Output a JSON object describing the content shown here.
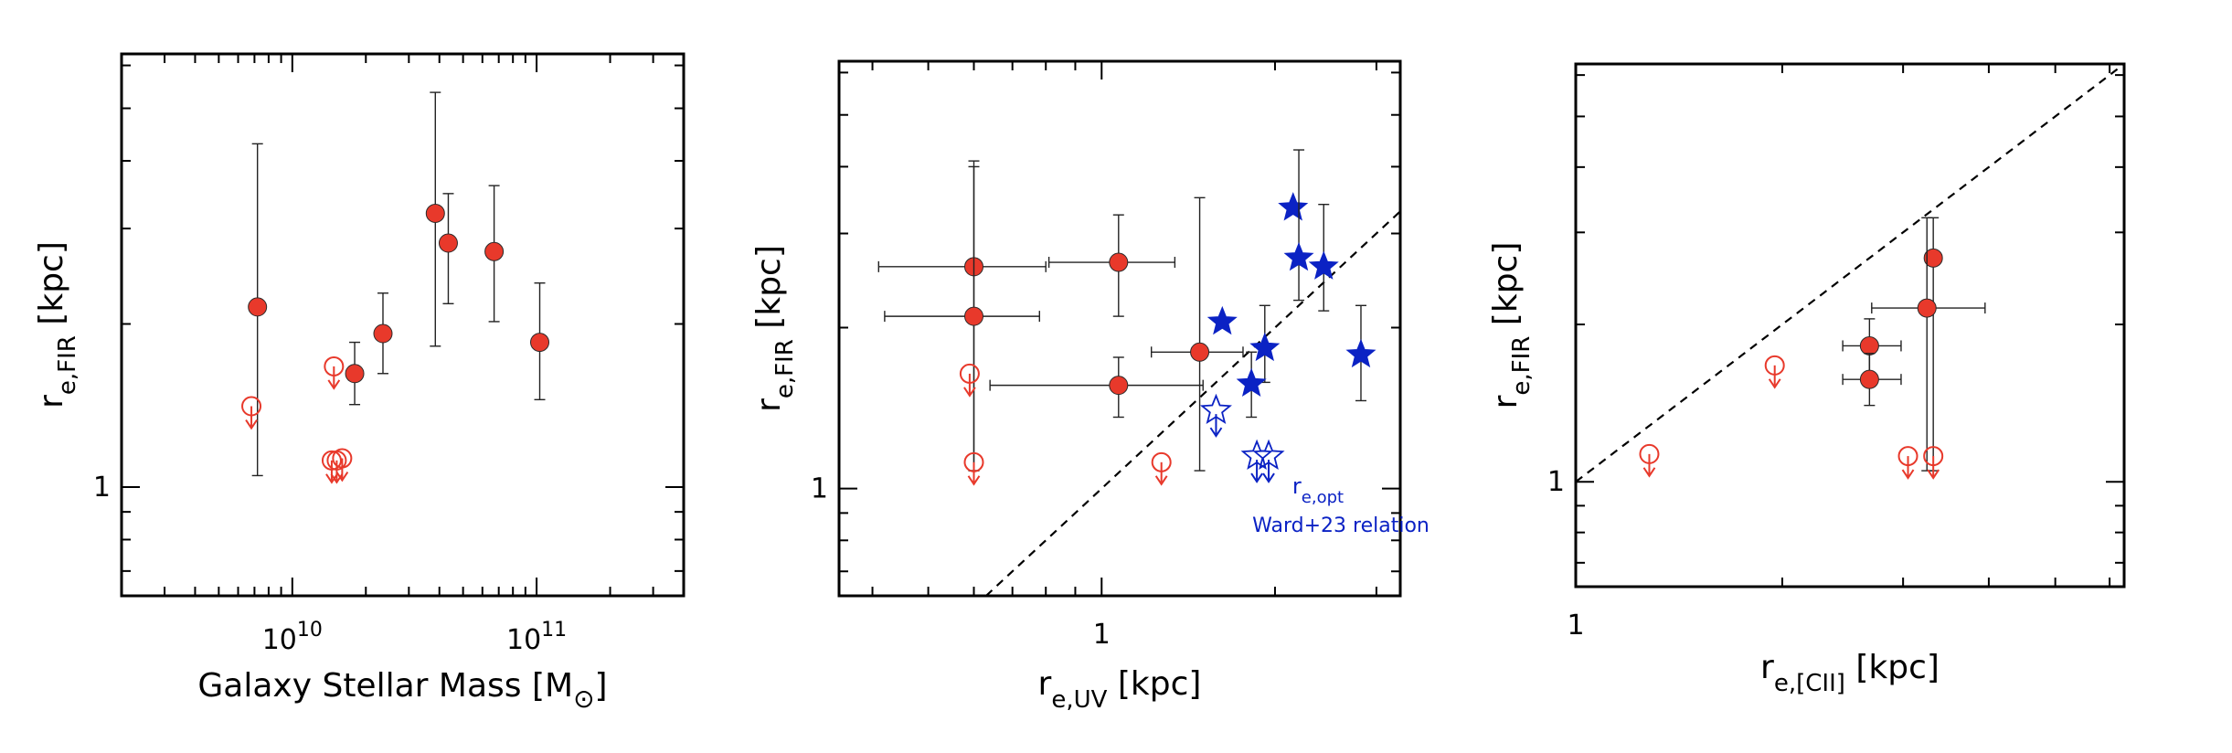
{
  "figure": {
    "description_free": true
  },
  "chart_data": [
    {
      "type": "scatter",
      "panel": "left",
      "xscale": "log",
      "yscale": "log",
      "xlim": [
        2000000000.0,
        400000000000.0
      ],
      "ylim": [
        0.63,
        6.3
      ],
      "xlabel": {
        "main": "Galaxy Stellar Mass [M",
        "sub": "⊙",
        "close": "]"
      },
      "ylabel": {
        "main": "r",
        "sub": "e,FIR",
        "unit": " [kpc]"
      },
      "x_tick_labels": [
        {
          "value": 10000000000.0,
          "base": "10",
          "exp": "10"
        },
        {
          "value": 100000000000.0,
          "base": "10",
          "exp": "11"
        }
      ],
      "y_tick_labels": [
        {
          "value": 1,
          "label": "1"
        }
      ],
      "series": [
        {
          "name": "detections",
          "marker": "filled-circle",
          "color": "#e8392b",
          "points": [
            {
              "x": 7200000000.0,
              "y": 2.15,
              "ylo": 1.05,
              "yhi": 4.3
            },
            {
              "x": 18000000000.0,
              "y": 1.62,
              "ylo": 1.42,
              "yhi": 1.85
            },
            {
              "x": 23500000000.0,
              "y": 1.92,
              "ylo": 1.62,
              "yhi": 2.28
            },
            {
              "x": 38500000000.0,
              "y": 3.2,
              "ylo": 1.82,
              "yhi": 5.35
            },
            {
              "x": 43500000000.0,
              "y": 2.82,
              "ylo": 2.18,
              "yhi": 3.48
            },
            {
              "x": 67000000000.0,
              "y": 2.72,
              "ylo": 2.02,
              "yhi": 3.6
            },
            {
              "x": 103000000000.0,
              "y": 1.85,
              "ylo": 1.45,
              "yhi": 2.38
            }
          ]
        },
        {
          "name": "upper limits",
          "marker": "open-circle-down-arrow",
          "color": "#e8392b",
          "points": [
            {
              "x": 6800000000.0,
              "y": 1.41
            },
            {
              "x": 14800000000.0,
              "y": 1.67
            },
            {
              "x": 14500000000.0,
              "y": 1.12
            },
            {
              "x": 15200000000.0,
              "y": 1.12
            },
            {
              "x": 16000000000.0,
              "y": 1.13
            }
          ]
        }
      ]
    },
    {
      "type": "scatter",
      "panel": "middle",
      "xscale": "log",
      "yscale": "log",
      "xlim": [
        0.35,
        3.3
      ],
      "ylim": [
        0.63,
        6.3
      ],
      "xlabel": {
        "main": "r",
        "sub": "e,UV",
        "unit": " [kpc]"
      },
      "ylabel": {
        "main": "r",
        "sub": "e,FIR",
        "unit": " [kpc]"
      },
      "x_tick_labels": [
        {
          "value": 1,
          "label": "1"
        }
      ],
      "y_tick_labels": [
        {
          "value": 1,
          "label": "1"
        }
      ],
      "one_to_one_line": true,
      "annotation": {
        "line1": "r",
        "line1_sub": "e,opt",
        "line2": "Ward+23 relation"
      },
      "series": [
        {
          "name": "detections",
          "marker": "filled-circle",
          "color": "#e8392b",
          "points": [
            {
              "x": 0.6,
              "y": 2.6,
              "xlo": 0.41,
              "xhi": 0.8,
              "ylo": 1.08,
              "yhi": 4.1
            },
            {
              "x": 0.6,
              "y": 2.1,
              "xlo": 0.42,
              "xhi": 0.78,
              "ylo": 1.08,
              "yhi": 4.0
            },
            {
              "x": 1.07,
              "y": 2.65,
              "xlo": 0.81,
              "xhi": 1.34,
              "ylo": 2.1,
              "yhi": 3.25
            },
            {
              "x": 1.48,
              "y": 1.8,
              "xlo": 1.22,
              "xhi": 1.76,
              "ylo": 1.08,
              "yhi": 3.5
            },
            {
              "x": 1.07,
              "y": 1.56,
              "xlo": 0.64,
              "xhi": 1.5,
              "ylo": 1.36,
              "yhi": 1.76
            }
          ]
        },
        {
          "name": "upper limits",
          "marker": "open-circle-down-arrow",
          "color": "#e8392b",
          "points": [
            {
              "x": 0.59,
              "y": 1.64
            },
            {
              "x": 0.6,
              "y": 1.12
            },
            {
              "x": 1.27,
              "y": 1.12
            }
          ]
        },
        {
          "name": "r_e,opt (Ward+23 relation)",
          "marker": "filled-star",
          "color": "#0b22c4",
          "points": [
            {
              "x": 2.15,
              "y": 3.35,
              "ylo": null,
              "yhi": null
            },
            {
              "x": 2.2,
              "y": 2.7,
              "ylo": 2.25,
              "yhi": 4.3
            },
            {
              "x": 2.43,
              "y": 2.6,
              "ylo": 2.15,
              "yhi": 3.4
            },
            {
              "x": 1.62,
              "y": 2.05,
              "ylo": null,
              "yhi": null
            },
            {
              "x": 1.92,
              "y": 1.83,
              "ylo": 1.58,
              "yhi": 2.2
            },
            {
              "x": 2.82,
              "y": 1.78,
              "ylo": 1.46,
              "yhi": 2.2
            },
            {
              "x": 1.82,
              "y": 1.57,
              "ylo": 1.36,
              "yhi": 1.8
            }
          ]
        },
        {
          "name": "r_e,opt upper limits",
          "marker": "open-star-down-arrow",
          "color": "#0b22c4",
          "points": [
            {
              "x": 1.58,
              "y": 1.4
            },
            {
              "x": 1.86,
              "y": 1.15
            },
            {
              "x": 1.95,
              "y": 1.15
            }
          ]
        }
      ]
    },
    {
      "type": "scatter",
      "panel": "right",
      "xscale": "log",
      "yscale": "log",
      "xlim": [
        1.0,
        6.3
      ],
      "ylim": [
        0.63,
        6.3
      ],
      "xlabel": {
        "main": "r",
        "sub": "e,[CII]",
        "unit": " [kpc]"
      },
      "ylabel": {
        "main": "r",
        "sub": "e,FIR",
        "unit": " [kpc]"
      },
      "x_tick_labels": [
        {
          "value": 1,
          "label": "1"
        }
      ],
      "y_tick_labels": [
        {
          "value": 1,
          "label": "1"
        }
      ],
      "one_to_one_line": true,
      "series": [
        {
          "name": "detections",
          "marker": "filled-circle",
          "color": "#e8392b",
          "points": [
            {
              "x": 3.32,
              "y": 2.68,
              "ylo": 1.05,
              "yhi": 3.2
            },
            {
              "x": 3.25,
              "y": 2.15,
              "xlo": 2.7,
              "xhi": 3.95,
              "ylo": 1.05,
              "yhi": 3.2
            },
            {
              "x": 2.68,
              "y": 1.82,
              "xlo": 2.45,
              "xhi": 2.98,
              "ylo": 1.62,
              "yhi": 2.05
            },
            {
              "x": 2.68,
              "y": 1.57,
              "xlo": 2.45,
              "xhi": 2.98,
              "ylo": 1.4,
              "yhi": 1.76
            }
          ]
        },
        {
          "name": "upper limits",
          "marker": "open-circle-down-arrow",
          "color": "#e8392b",
          "points": [
            {
              "x": 1.28,
              "y": 1.13
            },
            {
              "x": 1.95,
              "y": 1.67
            },
            {
              "x": 3.05,
              "y": 1.12
            },
            {
              "x": 3.32,
              "y": 1.12
            }
          ]
        }
      ]
    }
  ]
}
